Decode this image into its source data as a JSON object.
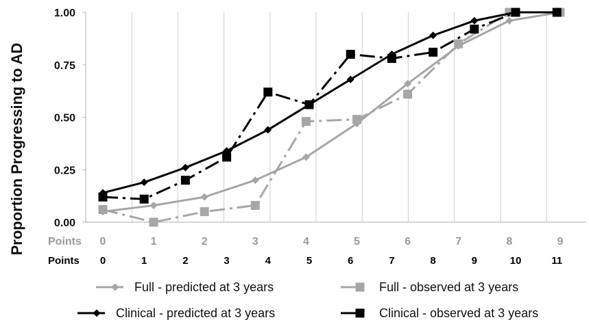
{
  "chart_data": {
    "type": "line",
    "title": "",
    "ylabel": "Proportion Progressing to AD",
    "ylim": [
      0,
      1
    ],
    "y_ticks": [
      "0.00",
      "0.25",
      "0.50",
      "0.75",
      "1.00"
    ],
    "grid": "vertical",
    "legend_position": "bottom",
    "x_axes": [
      {
        "label": "Points",
        "color": "#9a9a9a",
        "ticks": [
          "0",
          "1",
          "2",
          "3",
          "4",
          "5",
          "6",
          "7",
          "8",
          "9"
        ]
      },
      {
        "label": "Points",
        "color": "#000000",
        "ticks": [
          "0",
          "1",
          "2",
          "3",
          "4",
          "5",
          "6",
          "7",
          "8",
          "9",
          "10",
          "11"
        ]
      }
    ],
    "series": [
      {
        "name": "Full - predicted at 3 years",
        "scale": "full",
        "color": "#a6a6a6",
        "marker": "diamond",
        "dash": "solid",
        "x": [
          0,
          1,
          2,
          3,
          4,
          5,
          6,
          7,
          8,
          9
        ],
        "y": [
          0.05,
          0.08,
          0.12,
          0.2,
          0.31,
          0.47,
          0.66,
          0.84,
          0.96,
          1.0
        ]
      },
      {
        "name": "Full - observed at 3 years",
        "scale": "full",
        "color": "#a6a6a6",
        "marker": "square",
        "dash": "dashdot",
        "x": [
          0,
          1,
          2,
          3,
          4,
          5,
          6,
          7,
          8,
          9
        ],
        "y": [
          0.06,
          0.0,
          0.05,
          0.08,
          0.48,
          0.49,
          0.61,
          0.85,
          1.0,
          1.0
        ]
      },
      {
        "name": "Clinical - predicted at 3 years",
        "scale": "clinical",
        "color": "#000000",
        "marker": "diamond",
        "dash": "solid",
        "x": [
          0,
          1,
          2,
          3,
          4,
          5,
          6,
          7,
          8,
          9,
          10,
          11
        ],
        "y": [
          0.14,
          0.19,
          0.26,
          0.34,
          0.44,
          0.56,
          0.68,
          0.8,
          0.89,
          0.96,
          1.0,
          1.0
        ]
      },
      {
        "name": "Clinical - observed at 3 years",
        "scale": "clinical",
        "color": "#000000",
        "marker": "square",
        "dash": "dashdot",
        "x": [
          0,
          1,
          2,
          3,
          4,
          5,
          6,
          7,
          8,
          9,
          10,
          11
        ],
        "y": [
          0.12,
          0.11,
          0.2,
          0.31,
          0.62,
          0.56,
          0.8,
          0.78,
          0.81,
          0.92,
          1.0,
          1.0
        ]
      }
    ]
  }
}
